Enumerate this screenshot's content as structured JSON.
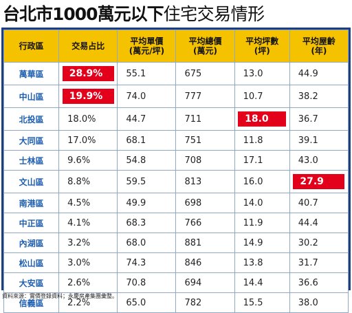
{
  "title": {
    "main": "台北市1000萬元以下",
    "sub": "住宅交易情形"
  },
  "table": {
    "headers": [
      "行政區",
      "交易占比",
      "平均單價\n(萬元/坪)",
      "平均總價\n(萬元)",
      "平均坪數\n(坪)",
      "平均屋齡\n(年)"
    ],
    "rows": [
      {
        "district": "萬華區",
        "share": "28.9%",
        "unit_price": "55.1",
        "total_price": "675",
        "area": "13.0",
        "age": "44.9",
        "highlight": "share"
      },
      {
        "district": "中山區",
        "share": "19.9%",
        "unit_price": "74.0",
        "total_price": "777",
        "area": "10.7",
        "age": "38.2",
        "highlight": "share"
      },
      {
        "district": "北投區",
        "share": "18.0%",
        "unit_price": "44.7",
        "total_price": "711",
        "area": "18.0",
        "age": "36.7",
        "highlight": "area"
      },
      {
        "district": "大同區",
        "share": "17.0%",
        "unit_price": "68.1",
        "total_price": "751",
        "area": "11.8",
        "age": "39.1",
        "highlight": ""
      },
      {
        "district": "士林區",
        "share": "9.6%",
        "unit_price": "54.8",
        "total_price": "708",
        "area": "17.1",
        "age": "43.0",
        "highlight": ""
      },
      {
        "district": "文山區",
        "share": "8.8%",
        "unit_price": "59.5",
        "total_price": "813",
        "area": "16.0",
        "age": "27.9",
        "highlight": "age"
      },
      {
        "district": "南港區",
        "share": "4.5%",
        "unit_price": "49.9",
        "total_price": "698",
        "area": "14.0",
        "age": "40.7",
        "highlight": ""
      },
      {
        "district": "中正區",
        "share": "4.1%",
        "unit_price": "68.3",
        "total_price": "766",
        "area": "11.9",
        "age": "44.4",
        "highlight": ""
      },
      {
        "district": "內湖區",
        "share": "3.2%",
        "unit_price": "68.0",
        "total_price": "881",
        "area": "14.9",
        "age": "30.2",
        "highlight": ""
      },
      {
        "district": "松山區",
        "share": "3.0%",
        "unit_price": "74.3",
        "total_price": "846",
        "area": "13.8",
        "age": "31.7",
        "highlight": ""
      },
      {
        "district": "大安區",
        "share": "2.6%",
        "unit_price": "70.8",
        "total_price": "694",
        "area": "14.4",
        "age": "36.6",
        "highlight": ""
      },
      {
        "district": "信義區",
        "share": "2.2%",
        "unit_price": "65.0",
        "total_price": "782",
        "area": "15.5",
        "age": "38.0",
        "highlight": ""
      }
    ]
  },
  "source": "資料來源：實價登錄資料；永慶房產集團彙整。",
  "colors": {
    "header_bg": "#f5c200",
    "border": "#1e3f7a",
    "district_text": "#1f5fb0",
    "highlight": "#e3001b"
  }
}
